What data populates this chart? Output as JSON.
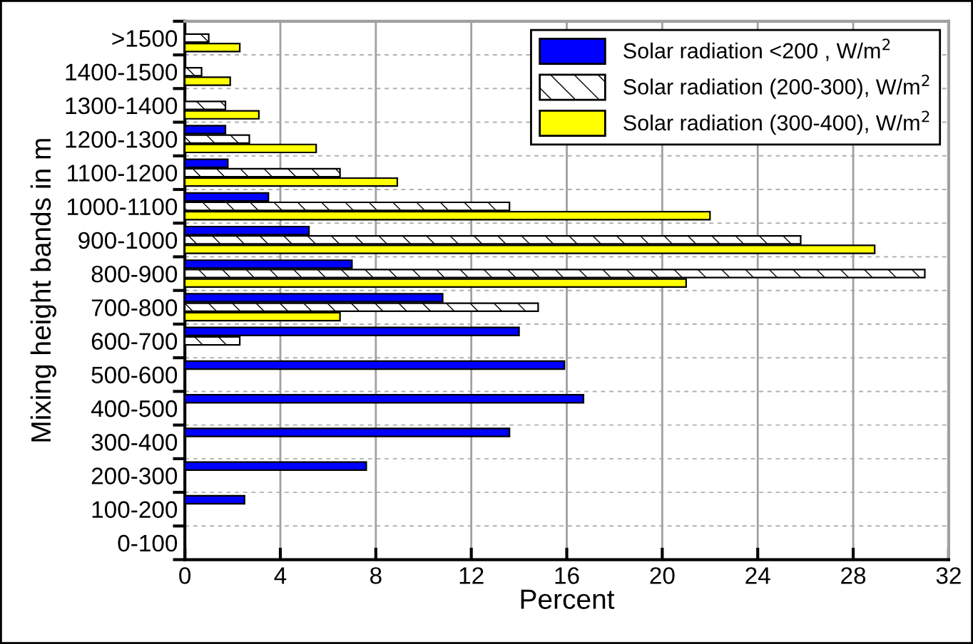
{
  "chart_data": {
    "type": "bar",
    "orientation": "horizontal",
    "xlabel": "Percent",
    "ylabel": "Mixing height bands in m",
    "categories": [
      ">1500",
      "1400-1500",
      "1300-1400",
      "1200-1300",
      "1100-1200",
      "1000-1100",
      "900-1000",
      "800-900",
      "700-800",
      "600-700",
      "500-600",
      "400-500",
      "300-400",
      "200-300",
      "100-200",
      "0-100"
    ],
    "series": [
      {
        "name": "Solar radiation <200 , W/m$^{2}$",
        "color": "#0000ff",
        "values": [
          null,
          null,
          null,
          1.7,
          1.8,
          3.5,
          5.2,
          7.0,
          10.8,
          14.0,
          15.9,
          16.7,
          13.6,
          7.6,
          2.5,
          null
        ]
      },
      {
        "name": "Solar radiation (200-300), W/m$^{2}$",
        "color": "#ffffff",
        "values": [
          1.0,
          0.7,
          1.7,
          2.7,
          6.5,
          13.6,
          25.8,
          31.0,
          14.8,
          2.3,
          null,
          null,
          null,
          null,
          null,
          null
        ]
      },
      {
        "name": "Solar radiation (300-400), W/m$^{2}$",
        "color": "#ffff00",
        "values": [
          2.3,
          1.9,
          3.1,
          5.5,
          8.9,
          22.0,
          28.9,
          21.0,
          6.5,
          null,
          null,
          null,
          null,
          null,
          null,
          null
        ]
      }
    ],
    "xlim": [
      0,
      32
    ],
    "xticks": [
      0,
      4,
      8,
      12,
      16,
      20,
      24,
      28,
      32
    ],
    "grid": true,
    "legend": "top right"
  }
}
